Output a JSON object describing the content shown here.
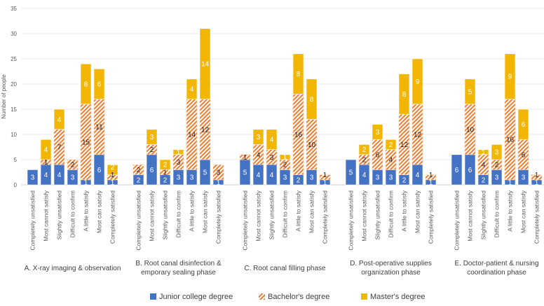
{
  "chart_data": {
    "type": "bar",
    "stacked": true,
    "ylabel": "Number of people",
    "ylim": [
      0,
      35
    ],
    "yticks": [
      0,
      5,
      10,
      15,
      20,
      25,
      30,
      35
    ],
    "grid": true,
    "legend_position": "bottom",
    "categories": [
      "Completely unsatisfied",
      "Most cannot satisfy",
      "Slightly unsatisfied",
      "Difficult to confirm",
      "A little to satisfy",
      "Most can satisfy",
      "Completely satisfied"
    ],
    "groups": [
      {
        "label": [
          "A. X-ray imaging & observation"
        ],
        "junior": [
          3,
          4,
          4,
          3,
          1,
          6,
          1
        ],
        "bachelor": [
          0,
          1,
          7,
          2,
          15,
          11,
          1
        ],
        "master": [
          0,
          4,
          4,
          0,
          8,
          6,
          2
        ]
      },
      {
        "label": [
          "B. Root canal disinfection &",
          "emporary sealing phase"
        ],
        "junior": [
          2,
          6,
          2,
          3,
          3,
          5,
          1
        ],
        "bachelor": [
          2,
          2,
          1,
          3,
          14,
          12,
          3
        ],
        "master": [
          0,
          3,
          2,
          1,
          4,
          14,
          0
        ]
      },
      {
        "label": [
          "C. Root canal filling phase"
        ],
        "junior": [
          5,
          4,
          4,
          3,
          2,
          3,
          1
        ],
        "bachelor": [
          1,
          4,
          3,
          2,
          16,
          10,
          1
        ],
        "master": [
          0,
          3,
          4,
          1,
          8,
          8,
          0
        ]
      },
      {
        "label": [
          "D. Post-operative supplies",
          "organization phase"
        ],
        "junior": [
          5,
          4,
          3,
          3,
          2,
          4,
          1
        ],
        "bachelor": [
          0,
          2,
          6,
          4,
          12,
          12,
          1
        ],
        "master": [
          0,
          2,
          3,
          2,
          8,
          9,
          0
        ]
      },
      {
        "label": [
          "E. Doctor-patient & nursing",
          "coordination phase"
        ],
        "junior": [
          6,
          6,
          2,
          3,
          1,
          3,
          1
        ],
        "bachelor": [
          0,
          10,
          4,
          2,
          16,
          6,
          1
        ],
        "master": [
          0,
          5,
          1,
          3,
          9,
          6,
          0
        ]
      }
    ],
    "series": [
      {
        "key": "junior",
        "name": "Junior college degree",
        "color": "#4472C4"
      },
      {
        "key": "bachelor",
        "name": "Bachelor's degree",
        "color": "#ED7D31"
      },
      {
        "key": "master",
        "name": "Master's degree",
        "color": "#F2B705"
      }
    ]
  }
}
